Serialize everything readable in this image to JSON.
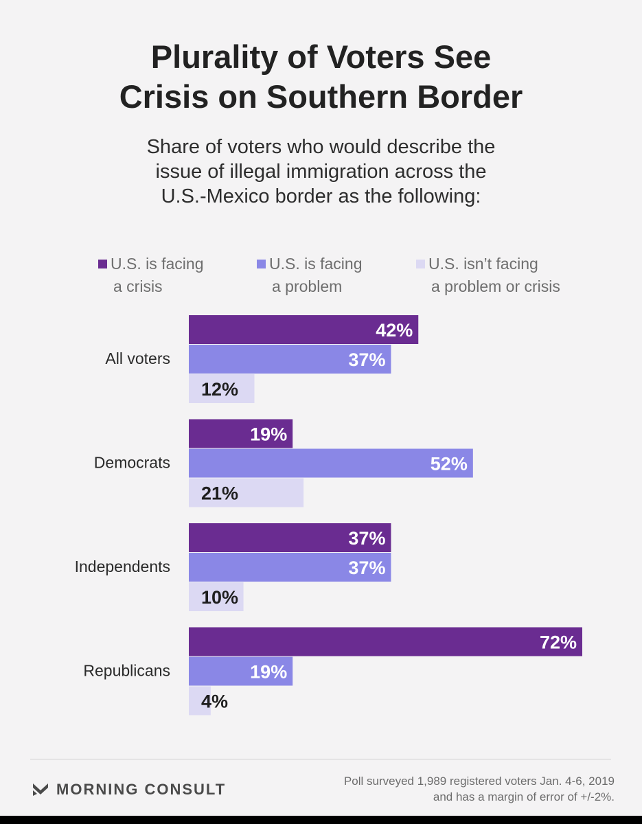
{
  "title_line1": "Plurality of Voters See",
  "title_line2": "Crisis on Southern Border",
  "subtitle_line1": "Share of voters who would describe the",
  "subtitle_line2": "issue of illegal immigration across the",
  "subtitle_line3": "U.S.-Mexico border as the following:",
  "legend": [
    {
      "line1": "U.S. is facing",
      "line2": "a crisis",
      "color": "#6a2c91"
    },
    {
      "line1": "U.S. is facing",
      "line2": "a problem",
      "color": "#8a87e6"
    },
    {
      "line1": "U.S. isn’t facing",
      "line2": "a problem or crisis",
      "color": "#dcd9f3"
    }
  ],
  "chart_data": {
    "type": "bar",
    "orientation": "horizontal",
    "title": "Plurality of Voters See Crisis on Southern Border",
    "categories": [
      "All voters",
      "Democrats",
      "Independents",
      "Republicans"
    ],
    "series": [
      {
        "name": "U.S. is facing a crisis",
        "values": [
          42,
          19,
          37,
          72
        ],
        "labels": [
          "42%",
          "19%",
          "37%",
          "72%"
        ],
        "color": "#6a2c91",
        "label_color": "#ffffff"
      },
      {
        "name": "U.S. is facing a problem",
        "values": [
          37,
          52,
          37,
          19
        ],
        "labels": [
          "37%",
          "52%",
          "37%",
          "19%"
        ],
        "color": "#8a87e6",
        "label_color": "#ffffff"
      },
      {
        "name": "U.S. isn’t facing a problem or crisis",
        "values": [
          12,
          21,
          10,
          4
        ],
        "labels": [
          "12%",
          "21%",
          "10%",
          "4%"
        ],
        "color": "#dcd9f3",
        "label_color": "#1e1e1e"
      }
    ],
    "xlim": [
      0,
      72
    ],
    "grid": false,
    "legend_position": "top"
  },
  "brand": "MORNING CONSULT",
  "footnote_line1": "Poll surveyed 1,989 registered voters Jan. 4-6, 2019",
  "footnote_line2": "and has a margin of error of +/-2%."
}
